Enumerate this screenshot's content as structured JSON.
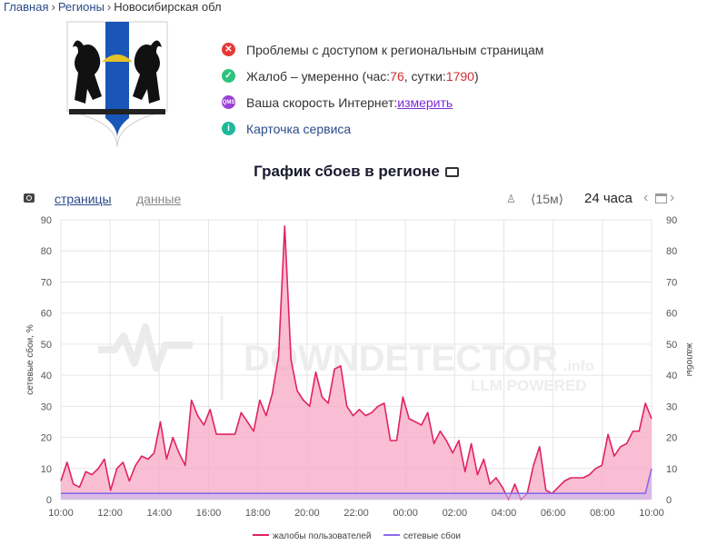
{
  "breadcrumb": {
    "home": "Главная",
    "regions": "Регионы",
    "current": "Новосибирская обл"
  },
  "info": {
    "problems": "Проблемы с доступом к региональным страницам",
    "complaints_prefix": "Жалоб – умеренно (час: ",
    "complaints_hour": "76",
    "complaints_mid": ", сутки: ",
    "complaints_day": "1790",
    "complaints_suffix": ")",
    "speed_text": "Ваша скорость Интернет: ",
    "speed_link": "измерить",
    "service_card": "Карточка сервиса",
    "qms_badge": "QMS"
  },
  "title": "График сбоев в регионе",
  "toolbar": {
    "pages": "страницы",
    "data": "данные",
    "interval": "⟨15м⟩",
    "range": "24 часа",
    "prev": "‹",
    "next": "›"
  },
  "watermark": {
    "main": "DOWNDETECTOR",
    "sub": ".info",
    "tag": "LLM POWERED"
  },
  "colors": {
    "complaints": "#e0245e",
    "complaints_fill": "#f7a8c4",
    "outages": "#8a6be8",
    "outages_fill": "#c7b9f3",
    "grid": "#e6e6e6"
  },
  "chart_data": {
    "type": "area",
    "x_ticks": [
      "10:00",
      "12:00",
      "14:00",
      "16:00",
      "18:00",
      "20:00",
      "22:00",
      "00:00",
      "02:00",
      "04:00",
      "06:00",
      "08:00",
      "10:00"
    ],
    "ylim": [
      0,
      90
    ],
    "y_ticks": [
      0,
      10,
      20,
      30,
      40,
      50,
      60,
      70,
      80,
      90
    ],
    "ylabel_left": "сетевые сбои, %",
    "ylabel_right": "жалобы",
    "legend": "bottom",
    "series": [
      {
        "name": "жалобы пользователей",
        "values": [
          6,
          12,
          5,
          4,
          9,
          8,
          10,
          13,
          3,
          10,
          12,
          6,
          11,
          14,
          13,
          15,
          25,
          13,
          20,
          15,
          11,
          32,
          27,
          24,
          29,
          21,
          21,
          21,
          21,
          28,
          25,
          22,
          32,
          27,
          34,
          46,
          88,
          45,
          35,
          32,
          30,
          41,
          33,
          31,
          42,
          43,
          30,
          27,
          29,
          27,
          28,
          30,
          31,
          19,
          19,
          33,
          26,
          25,
          24,
          28,
          18,
          22,
          19,
          15,
          19,
          9,
          18,
          8,
          13,
          5,
          7,
          4,
          0,
          5,
          0,
          2,
          11,
          17,
          3,
          2,
          4,
          6,
          7,
          7,
          7,
          8,
          10,
          11,
          21,
          14,
          17,
          18,
          22,
          22,
          31,
          26
        ]
      },
      {
        "name": "сетевые сбои",
        "values": [
          2,
          2,
          2,
          2,
          2,
          2,
          2,
          2,
          2,
          2,
          2,
          2,
          2,
          2,
          2,
          2,
          2,
          2,
          2,
          2,
          2,
          2,
          2,
          2,
          2,
          2,
          2,
          2,
          2,
          2,
          2,
          2,
          2,
          2,
          2,
          2,
          2,
          2,
          2,
          2,
          2,
          2,
          2,
          2,
          2,
          2,
          2,
          2,
          2,
          2,
          2,
          2,
          2,
          2,
          2,
          2,
          2,
          2,
          2,
          2,
          2,
          2,
          2,
          2,
          2,
          2,
          2,
          2,
          2,
          2,
          2,
          2,
          2,
          2,
          2,
          2,
          2,
          2,
          2,
          2,
          2,
          2,
          2,
          2,
          2,
          2,
          2,
          2,
          2,
          2,
          2,
          2,
          2,
          2,
          2,
          10
        ]
      }
    ]
  }
}
